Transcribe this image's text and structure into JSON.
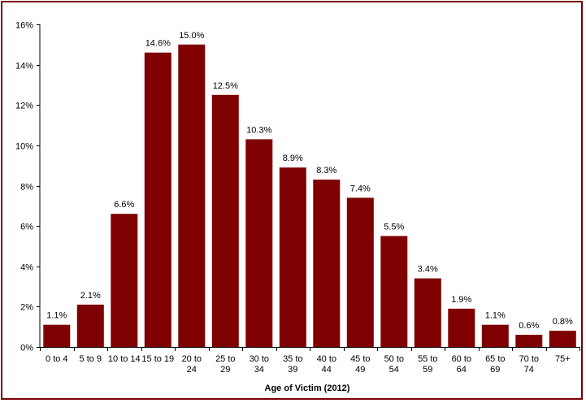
{
  "chart_data": {
    "type": "bar",
    "title": "",
    "xlabel": "Age of Victim (2012)",
    "ylabel": "",
    "categories": [
      [
        "0 to 4"
      ],
      [
        "5 to 9"
      ],
      [
        "10 to 14"
      ],
      [
        "15 to 19"
      ],
      [
        "20 to",
        "24"
      ],
      [
        "25 to",
        "29"
      ],
      [
        "30 to",
        "34"
      ],
      [
        "35 to",
        "39"
      ],
      [
        "40 to",
        "44"
      ],
      [
        "45 to",
        "49"
      ],
      [
        "50 to",
        "54"
      ],
      [
        "55 to",
        "59"
      ],
      [
        "60 to",
        "64"
      ],
      [
        "65 to",
        "69"
      ],
      [
        "70 to",
        "74"
      ],
      [
        "75+"
      ]
    ],
    "values": [
      1.1,
      2.1,
      6.6,
      14.6,
      15.0,
      12.5,
      10.3,
      8.9,
      8.3,
      7.4,
      5.5,
      3.4,
      1.9,
      1.1,
      0.6,
      0.8
    ],
    "value_labels": [
      "1.1%",
      "2.1%",
      "6.6%",
      "14.6%",
      "15.0%",
      "12.5%",
      "10.3%",
      "8.9%",
      "8.3%",
      "7.4%",
      "5.5%",
      "3.4%",
      "1.9%",
      "1.1%",
      "0.6%",
      "0.8%"
    ],
    "ylim": [
      0,
      16
    ],
    "y_ticks": [
      {
        "value": 0,
        "label": "0%"
      },
      {
        "value": 2,
        "label": "2%"
      },
      {
        "value": 4,
        "label": "4%"
      },
      {
        "value": 6,
        "label": "6%"
      },
      {
        "value": 8,
        "label": "8%"
      },
      {
        "value": 10,
        "label": "10%"
      },
      {
        "value": 12,
        "label": "12%"
      },
      {
        "value": 14,
        "label": "14%"
      },
      {
        "value": 16,
        "label": "16%"
      }
    ],
    "grid": false,
    "legend": "none",
    "bar_color": "#7f0000",
    "border_color": "#7a0000",
    "axis_color": "#000000"
  }
}
